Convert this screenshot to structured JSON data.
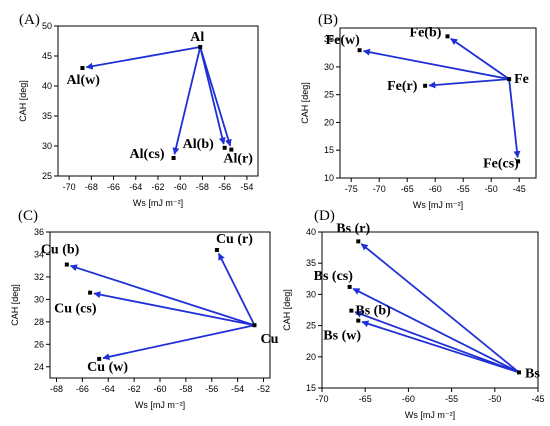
{
  "chart_data": [
    {
      "type": "scatter",
      "title": "",
      "panel_label": "(A)",
      "xlabel": "Ws [mJ m⁻²]",
      "ylabel": "CAH [deg]",
      "xlim": [
        -71,
        -53
      ],
      "ylim": [
        25,
        50
      ],
      "xticks": [
        -70,
        -68,
        -66,
        -64,
        -62,
        -60,
        -58,
        -56,
        -54
      ],
      "yticks": [
        25,
        30,
        35,
        40,
        45,
        50
      ],
      "points": [
        {
          "label": "Al",
          "x": -58.2,
          "y": 46.5
        },
        {
          "label": "Al(w)",
          "x": -68.8,
          "y": 43.0
        },
        {
          "label": "Al(cs)",
          "x": -60.6,
          "y": 28.0
        },
        {
          "label": "Al(b)",
          "x": -56.0,
          "y": 29.7
        },
        {
          "label": "Al(r)",
          "x": -55.4,
          "y": 29.4
        }
      ],
      "arrows": [
        {
          "from": "Al",
          "to": "Al(w)"
        },
        {
          "from": "Al",
          "to": "Al(cs)"
        },
        {
          "from": "Al",
          "to": "Al(b)"
        },
        {
          "from": "Al",
          "to": "Al(r)"
        }
      ]
    },
    {
      "type": "scatter",
      "title": "",
      "panel_label": "(B)",
      "xlabel": "Ws [mJ m⁻²]",
      "ylabel": "CAH [deg]",
      "xlim": [
        -77,
        -42
      ],
      "ylim": [
        10,
        37
      ],
      "xticks": [
        -75,
        -70,
        -65,
        -60,
        -55,
        -50,
        -45
      ],
      "yticks": [
        10,
        15,
        20,
        25,
        30,
        35
      ],
      "points": [
        {
          "label": "Fe",
          "x": -46.8,
          "y": 27.8
        },
        {
          "label": "Fe(w)",
          "x": -73.5,
          "y": 33.0
        },
        {
          "label": "Fe(b)",
          "x": -57.8,
          "y": 35.5
        },
        {
          "label": "Fe(r)",
          "x": -61.8,
          "y": 26.6
        },
        {
          "label": "Fe(cs)",
          "x": -45.2,
          "y": 13.0
        }
      ],
      "arrows": [
        {
          "from": "Fe",
          "to": "Fe(w)"
        },
        {
          "from": "Fe",
          "to": "Fe(b)"
        },
        {
          "from": "Fe",
          "to": "Fe(r)"
        },
        {
          "from": "Fe",
          "to": "Fe(cs)"
        }
      ]
    },
    {
      "type": "scatter",
      "title": "",
      "panel_label": "(C)",
      "xlabel": "Ws [mJ m⁻²]",
      "ylabel": "CAH [deg]",
      "xlim": [
        -68.5,
        -51.5
      ],
      "ylim": [
        23,
        36
      ],
      "xticks": [
        -68,
        -66,
        -64,
        -62,
        -60,
        -58,
        -56,
        -54,
        -52
      ],
      "yticks": [
        24,
        26,
        28,
        30,
        32,
        34,
        36
      ],
      "points": [
        {
          "label": "Cu",
          "x": -52.7,
          "y": 27.7
        },
        {
          "label": "Cu (b)",
          "x": -67.2,
          "y": 33.1
        },
        {
          "label": "Cu (r)",
          "x": -55.6,
          "y": 34.4
        },
        {
          "label": "Cu (cs)",
          "x": -65.4,
          "y": 30.6
        },
        {
          "label": "Cu (w)",
          "x": -64.7,
          "y": 24.7
        }
      ],
      "arrows": [
        {
          "from": "Cu",
          "to": "Cu (b)"
        },
        {
          "from": "Cu",
          "to": "Cu (r)"
        },
        {
          "from": "Cu",
          "to": "Cu (cs)"
        },
        {
          "from": "Cu",
          "to": "Cu (w)"
        }
      ]
    },
    {
      "type": "scatter",
      "title": "",
      "panel_label": "(D)",
      "xlabel": "Ws [mJ m⁻²]",
      "ylabel": "CAH [deg]",
      "xlim": [
        -70,
        -45
      ],
      "ylim": [
        15,
        40
      ],
      "xticks": [
        -70,
        -65,
        -60,
        -55,
        -50,
        -45
      ],
      "yticks": [
        15,
        20,
        25,
        30,
        35,
        40
      ],
      "points": [
        {
          "label": "Bs",
          "x": -47.2,
          "y": 17.5
        },
        {
          "label": "Bs (r)",
          "x": -65.8,
          "y": 38.5
        },
        {
          "label": "Bs (cs)",
          "x": -66.8,
          "y": 31.2
        },
        {
          "label": "Bs (b)",
          "x": -66.6,
          "y": 27.4
        },
        {
          "label": "Bs (w)",
          "x": -65.8,
          "y": 25.8
        }
      ],
      "arrows": [
        {
          "from": "Bs",
          "to": "Bs (r)"
        },
        {
          "from": "Bs",
          "to": "Bs (cs)"
        },
        {
          "from": "Bs",
          "to": "Bs (b)"
        },
        {
          "from": "Bs",
          "to": "Bs (w)"
        }
      ]
    }
  ]
}
